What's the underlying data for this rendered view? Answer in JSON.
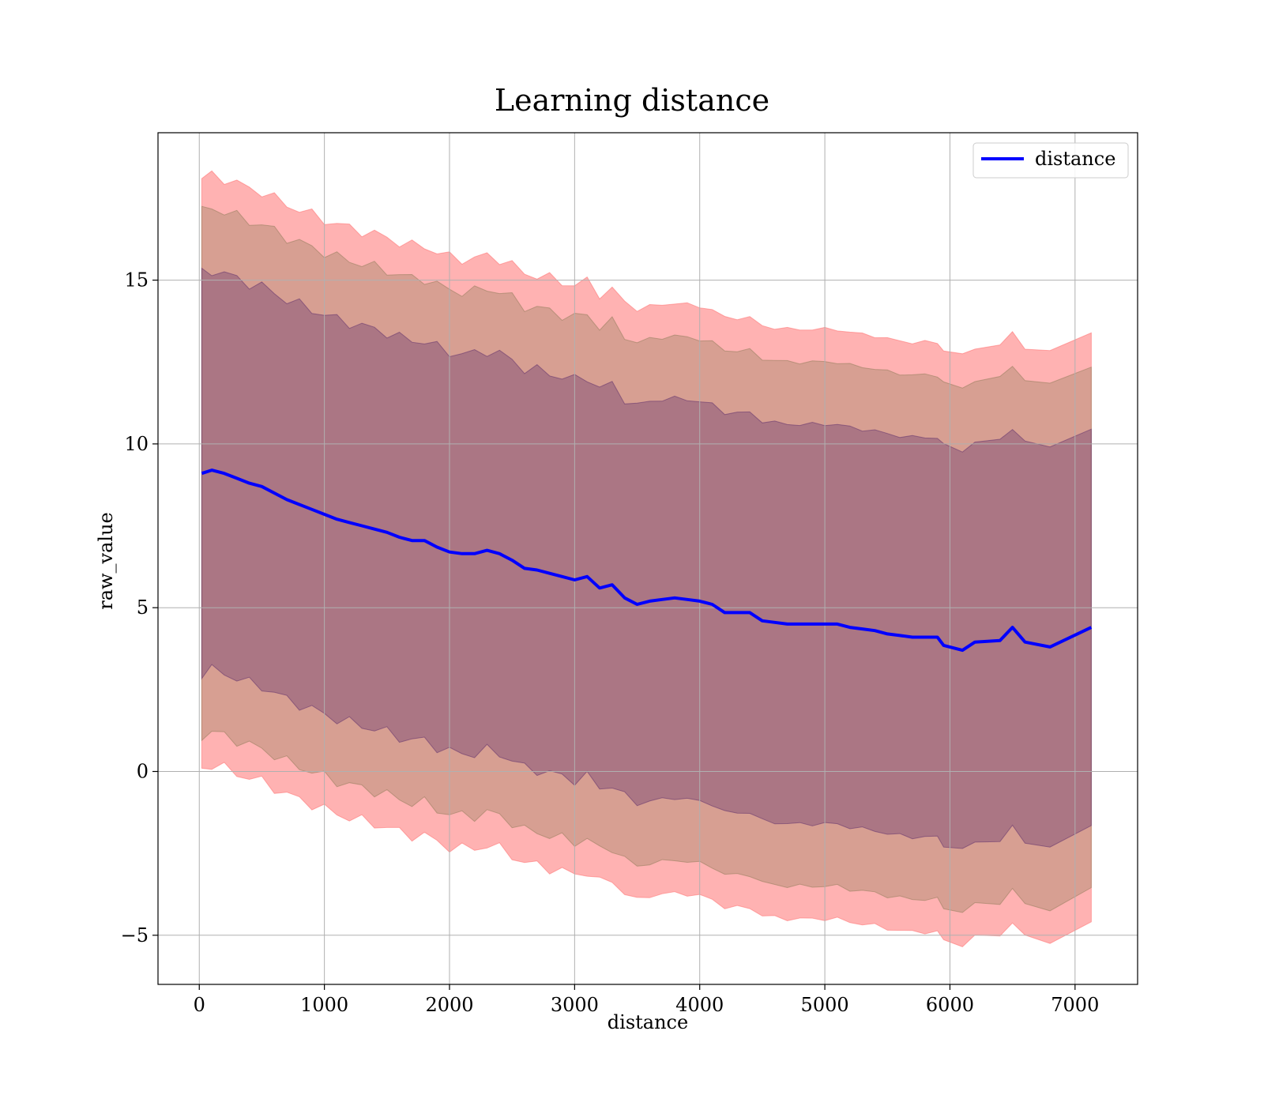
{
  "chart_data": {
    "type": "line",
    "title": "Learning distance",
    "xlabel": "distance",
    "ylabel": "raw_value",
    "xlim": [
      -330,
      7500
    ],
    "ylim": [
      -6.5,
      19.5
    ],
    "x_ticks": [
      0,
      1000,
      2000,
      3000,
      4000,
      5000,
      6000,
      7000
    ],
    "x_tick_labels": [
      "0",
      "1000",
      "2000",
      "3000",
      "4000",
      "5000",
      "6000",
      "7000"
    ],
    "y_ticks": [
      -5,
      0,
      5,
      10,
      15
    ],
    "y_tick_labels": [
      "−5",
      "0",
      "5",
      "10",
      "15"
    ],
    "grid": true,
    "legend": {
      "position": "top-right",
      "entries": [
        "distance"
      ]
    },
    "series": [
      {
        "name": "distance",
        "color": "#0000ff",
        "x": [
          20,
          100,
          200,
          300,
          400,
          500,
          600,
          700,
          800,
          900,
          1000,
          1100,
          1200,
          1300,
          1400,
          1500,
          1600,
          1700,
          1800,
          1900,
          2000,
          2100,
          2200,
          2300,
          2400,
          2500,
          2600,
          2700,
          2800,
          2900,
          3000,
          3100,
          3200,
          3300,
          3400,
          3500,
          3600,
          3700,
          3800,
          3900,
          4000,
          4100,
          4200,
          4300,
          4400,
          4500,
          4600,
          4700,
          4800,
          4900,
          5000,
          5100,
          5200,
          5300,
          5400,
          5500,
          5600,
          5700,
          5800,
          5900,
          5950,
          6100,
          6200,
          6400,
          6500,
          6600,
          6800,
          7130
        ],
        "values": [
          9.1,
          9.2,
          9.1,
          8.95,
          8.8,
          8.7,
          8.5,
          8.3,
          8.15,
          8.0,
          7.85,
          7.7,
          7.6,
          7.5,
          7.4,
          7.3,
          7.15,
          7.05,
          7.05,
          6.85,
          6.7,
          6.65,
          6.65,
          6.75,
          6.65,
          6.45,
          6.2,
          6.15,
          6.05,
          5.95,
          5.85,
          5.95,
          5.6,
          5.7,
          5.3,
          5.1,
          5.2,
          5.25,
          5.3,
          5.25,
          5.2,
          5.1,
          4.85,
          4.85,
          4.85,
          4.6,
          4.55,
          4.5,
          4.5,
          4.5,
          4.5,
          4.5,
          4.4,
          4.35,
          4.3,
          4.2,
          4.15,
          4.1,
          4.1,
          4.1,
          3.85,
          3.7,
          3.95,
          4.0,
          4.4,
          3.95,
          3.8,
          4.4
        ]
      }
    ],
    "bands": [
      {
        "color": "#ff6666",
        "opacity": 0.5,
        "half_width": 9.0
      },
      {
        "color": "#8b7a55",
        "opacity": 0.35,
        "half_width": 8.0
      },
      {
        "color": "#5a2a6a",
        "opacity": 0.35,
        "half_width": 6.1
      }
    ]
  }
}
